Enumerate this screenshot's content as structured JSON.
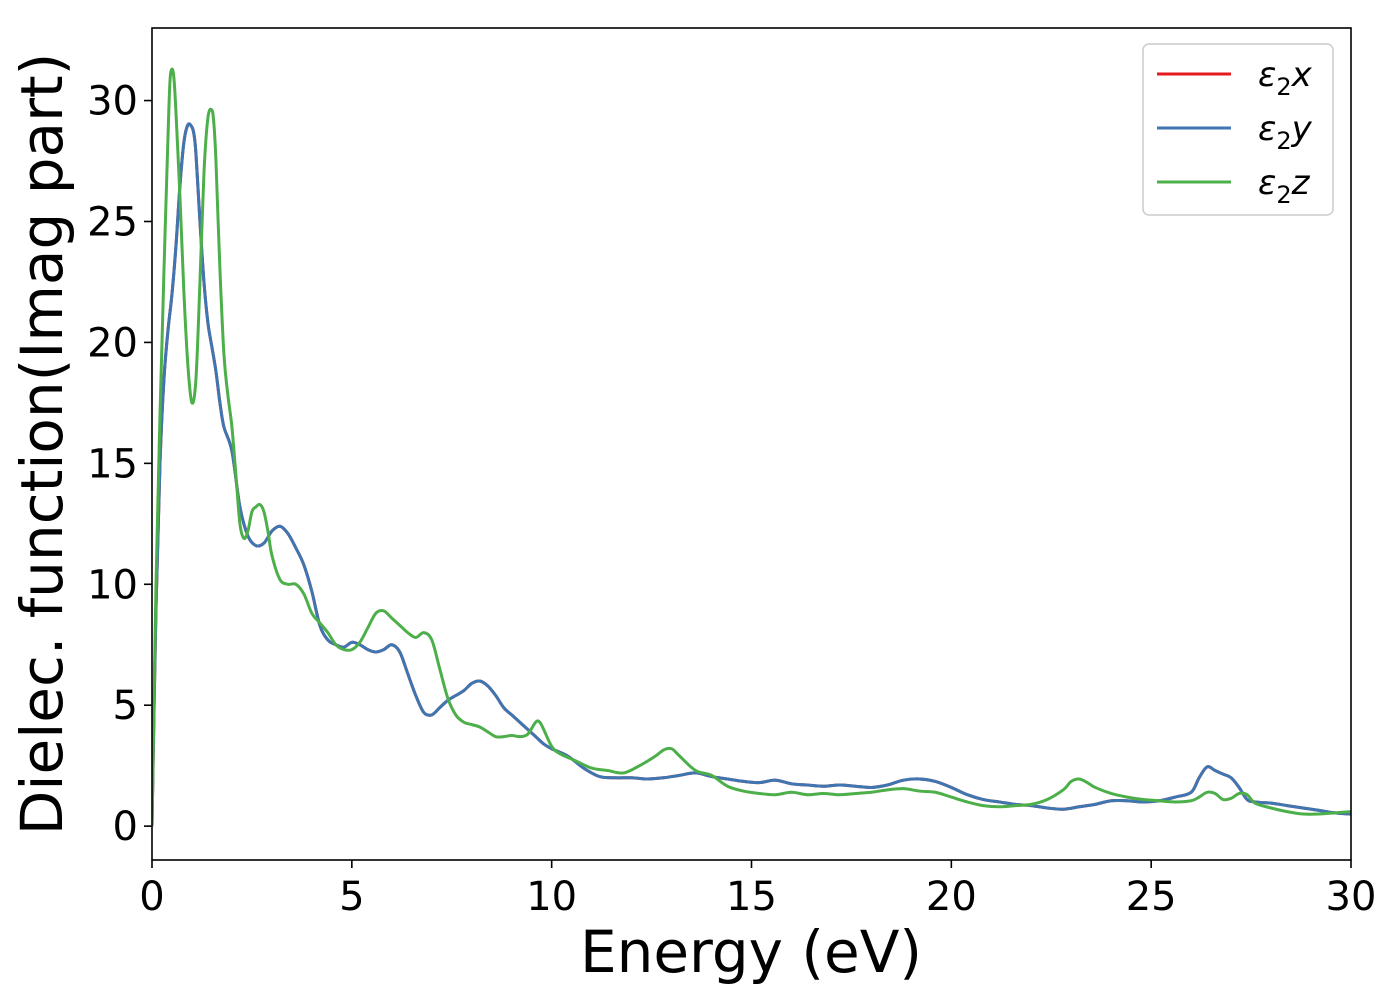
{
  "chart_data": {
    "type": "line",
    "xlabel": "Energy (eV)",
    "ylabel": "Dielec. function(Imag part)",
    "xlim": [
      0,
      30
    ],
    "ylim": [
      -1.4,
      33
    ],
    "xticks": [
      0,
      5,
      10,
      15,
      20,
      25,
      30
    ],
    "yticks": [
      0,
      5,
      10,
      15,
      20,
      25,
      30
    ],
    "grid": false,
    "legend_position": "top-right",
    "series": [
      {
        "name": "ε₂x",
        "label_base": "ε",
        "label_sub": "2",
        "label_suffix": "x",
        "color": "#e41a1c",
        "x": [
          0,
          0.1,
          0.2,
          0.3,
          0.4,
          0.5,
          0.6,
          0.7,
          0.8,
          0.9,
          1.0,
          1.05,
          1.1,
          1.2,
          1.3,
          1.4,
          1.5,
          1.6,
          1.7,
          1.8,
          2.0,
          2.2,
          2.4,
          2.6,
          2.8,
          3.0,
          3.2,
          3.4,
          3.6,
          3.8,
          4.0,
          4.2,
          4.4,
          4.6,
          4.8,
          5.0,
          5.2,
          5.4,
          5.6,
          5.8,
          6.0,
          6.2,
          6.4,
          6.6,
          6.8,
          7.0,
          7.2,
          7.4,
          7.6,
          7.8,
          8.0,
          8.2,
          8.4,
          8.6,
          8.8,
          9.0,
          9.2,
          9.4,
          9.6,
          9.8,
          10.0,
          10.4,
          10.8,
          11.2,
          11.6,
          12.0,
          12.4,
          12.8,
          13.2,
          13.6,
          14.0,
          14.4,
          14.8,
          15.2,
          15.6,
          16.0,
          16.4,
          16.8,
          17.2,
          17.6,
          18.0,
          18.4,
          18.8,
          19.2,
          19.6,
          20.0,
          20.4,
          20.8,
          21.2,
          21.6,
          22.0,
          22.4,
          22.8,
          23.2,
          23.6,
          24.0,
          24.4,
          24.8,
          25.2,
          25.6,
          26.0,
          26.2,
          26.4,
          26.6,
          26.8,
          27.0,
          27.2,
          27.4,
          27.6,
          28.0,
          28.4,
          28.8,
          29.2,
          29.6,
          30.0
        ],
        "y": [
          0,
          9,
          15,
          18.5,
          20.5,
          22,
          24,
          26.5,
          28.3,
          29,
          28.9,
          28.6,
          27.8,
          25,
          22.5,
          20.8,
          19.8,
          18.8,
          17.5,
          16.5,
          15.5,
          13.2,
          12,
          11.6,
          11.7,
          12.2,
          12.4,
          12.1,
          11.5,
          10.8,
          9.7,
          8.3,
          7.7,
          7.5,
          7.4,
          7.6,
          7.5,
          7.3,
          7.2,
          7.3,
          7.5,
          7.2,
          6.3,
          5.4,
          4.7,
          4.6,
          4.9,
          5.2,
          5.4,
          5.6,
          5.9,
          6.0,
          5.8,
          5.4,
          4.9,
          4.6,
          4.3,
          4.0,
          3.7,
          3.4,
          3.2,
          2.9,
          2.4,
          2.05,
          2.0,
          2.0,
          1.95,
          2.0,
          2.1,
          2.2,
          2.05,
          1.95,
          1.85,
          1.8,
          1.9,
          1.75,
          1.7,
          1.65,
          1.7,
          1.65,
          1.6,
          1.7,
          1.9,
          1.95,
          1.85,
          1.6,
          1.3,
          1.1,
          1.0,
          0.9,
          0.85,
          0.75,
          0.7,
          0.8,
          0.9,
          1.05,
          1.05,
          1.0,
          1.05,
          1.2,
          1.4,
          2.0,
          2.45,
          2.3,
          2.15,
          2.0,
          1.6,
          1.1,
          1.0,
          0.95,
          0.85,
          0.75,
          0.65,
          0.55,
          0.5
        ]
      },
      {
        "name": "ε₂y",
        "label_base": "ε",
        "label_sub": "2",
        "label_suffix": "y",
        "color": "#3e76b2",
        "x": [
          0,
          0.1,
          0.2,
          0.3,
          0.4,
          0.5,
          0.6,
          0.7,
          0.8,
          0.9,
          1.0,
          1.05,
          1.1,
          1.2,
          1.3,
          1.4,
          1.5,
          1.6,
          1.7,
          1.8,
          2.0,
          2.2,
          2.4,
          2.6,
          2.8,
          3.0,
          3.2,
          3.4,
          3.6,
          3.8,
          4.0,
          4.2,
          4.4,
          4.6,
          4.8,
          5.0,
          5.2,
          5.4,
          5.6,
          5.8,
          6.0,
          6.2,
          6.4,
          6.6,
          6.8,
          7.0,
          7.2,
          7.4,
          7.6,
          7.8,
          8.0,
          8.2,
          8.4,
          8.6,
          8.8,
          9.0,
          9.2,
          9.4,
          9.6,
          9.8,
          10.0,
          10.4,
          10.8,
          11.2,
          11.6,
          12.0,
          12.4,
          12.8,
          13.2,
          13.6,
          14.0,
          14.4,
          14.8,
          15.2,
          15.6,
          16.0,
          16.4,
          16.8,
          17.2,
          17.6,
          18.0,
          18.4,
          18.8,
          19.2,
          19.6,
          20.0,
          20.4,
          20.8,
          21.2,
          21.6,
          22.0,
          22.4,
          22.8,
          23.2,
          23.6,
          24.0,
          24.4,
          24.8,
          25.2,
          25.6,
          26.0,
          26.2,
          26.4,
          26.6,
          26.8,
          27.0,
          27.2,
          27.4,
          27.6,
          28.0,
          28.4,
          28.8,
          29.2,
          29.6,
          30.0
        ],
        "y": [
          0,
          9,
          15,
          18.5,
          20.5,
          22,
          24,
          26.5,
          28.3,
          29,
          28.9,
          28.6,
          27.8,
          25,
          22.5,
          20.8,
          19.8,
          18.8,
          17.5,
          16.5,
          15.5,
          13.2,
          12,
          11.6,
          11.7,
          12.2,
          12.4,
          12.1,
          11.5,
          10.8,
          9.7,
          8.3,
          7.7,
          7.5,
          7.4,
          7.6,
          7.5,
          7.3,
          7.2,
          7.3,
          7.5,
          7.2,
          6.3,
          5.4,
          4.7,
          4.6,
          4.9,
          5.2,
          5.4,
          5.6,
          5.9,
          6.0,
          5.8,
          5.4,
          4.9,
          4.6,
          4.3,
          4.0,
          3.7,
          3.4,
          3.2,
          2.9,
          2.4,
          2.05,
          2.0,
          2.0,
          1.95,
          2.0,
          2.1,
          2.2,
          2.05,
          1.95,
          1.85,
          1.8,
          1.9,
          1.75,
          1.7,
          1.65,
          1.7,
          1.65,
          1.6,
          1.7,
          1.9,
          1.95,
          1.85,
          1.6,
          1.3,
          1.1,
          1.0,
          0.9,
          0.85,
          0.75,
          0.7,
          0.8,
          0.9,
          1.05,
          1.05,
          1.0,
          1.05,
          1.2,
          1.4,
          2.0,
          2.45,
          2.3,
          2.15,
          2.0,
          1.6,
          1.1,
          1.0,
          0.95,
          0.85,
          0.75,
          0.65,
          0.55,
          0.5
        ]
      },
      {
        "name": "ε₂z",
        "label_base": "ε",
        "label_sub": "2",
        "label_suffix": "z",
        "color": "#4daf4a",
        "x": [
          0,
          0.1,
          0.2,
          0.3,
          0.4,
          0.45,
          0.5,
          0.55,
          0.6,
          0.7,
          0.8,
          0.9,
          1.0,
          1.1,
          1.2,
          1.3,
          1.4,
          1.5,
          1.55,
          1.6,
          1.7,
          1.8,
          1.9,
          2.0,
          2.1,
          2.2,
          2.3,
          2.4,
          2.5,
          2.6,
          2.7,
          2.8,
          2.9,
          3.0,
          3.2,
          3.4,
          3.6,
          3.8,
          4.0,
          4.2,
          4.4,
          4.6,
          4.8,
          5.0,
          5.2,
          5.4,
          5.6,
          5.8,
          6.0,
          6.2,
          6.4,
          6.6,
          6.8,
          7.0,
          7.2,
          7.4,
          7.6,
          7.8,
          8.0,
          8.2,
          8.4,
          8.6,
          8.8,
          9.0,
          9.2,
          9.4,
          9.6,
          9.7,
          9.8,
          10.0,
          10.2,
          10.6,
          11.0,
          11.4,
          11.8,
          12.2,
          12.6,
          12.8,
          13.0,
          13.2,
          13.6,
          14.0,
          14.4,
          14.8,
          15.2,
          15.6,
          16.0,
          16.4,
          16.8,
          17.2,
          17.6,
          18.0,
          18.4,
          18.8,
          19.2,
          19.6,
          20.0,
          20.4,
          20.8,
          21.2,
          21.6,
          22.0,
          22.4,
          22.8,
          23.0,
          23.2,
          23.4,
          23.6,
          24.0,
          24.4,
          24.8,
          25.2,
          25.6,
          26.0,
          26.2,
          26.4,
          26.6,
          26.8,
          27.0,
          27.2,
          27.4,
          27.6,
          28.0,
          28.4,
          28.8,
          29.2,
          29.6,
          30.0
        ],
        "y": [
          0,
          10,
          17,
          23,
          28.5,
          30.8,
          31.3,
          30.9,
          29.5,
          26,
          22,
          19,
          17.5,
          18.5,
          22.5,
          27,
          29.3,
          29.6,
          29,
          27.5,
          23,
          19.5,
          17.8,
          16.5,
          14.5,
          12.5,
          11.9,
          12.2,
          13,
          13.2,
          13.3,
          13,
          12.2,
          11.2,
          10.2,
          10.0,
          10.0,
          9.6,
          8.8,
          8.4,
          8.0,
          7.5,
          7.3,
          7.3,
          7.6,
          8.2,
          8.8,
          8.9,
          8.6,
          8.3,
          8.0,
          7.8,
          8.0,
          7.7,
          6.5,
          5.3,
          4.6,
          4.3,
          4.2,
          4.1,
          3.9,
          3.7,
          3.7,
          3.75,
          3.7,
          3.8,
          4.3,
          4.3,
          4.0,
          3.3,
          3.0,
          2.7,
          2.4,
          2.3,
          2.2,
          2.5,
          2.9,
          3.15,
          3.2,
          2.9,
          2.3,
          2.1,
          1.65,
          1.45,
          1.35,
          1.3,
          1.4,
          1.3,
          1.35,
          1.3,
          1.35,
          1.4,
          1.5,
          1.55,
          1.45,
          1.4,
          1.2,
          1.0,
          0.85,
          0.8,
          0.85,
          0.9,
          1.1,
          1.5,
          1.85,
          1.95,
          1.8,
          1.6,
          1.35,
          1.2,
          1.1,
          1.05,
          1.0,
          1.05,
          1.2,
          1.4,
          1.35,
          1.1,
          1.15,
          1.35,
          1.3,
          0.95,
          0.75,
          0.6,
          0.5,
          0.5,
          0.55,
          0.6
        ]
      }
    ]
  }
}
